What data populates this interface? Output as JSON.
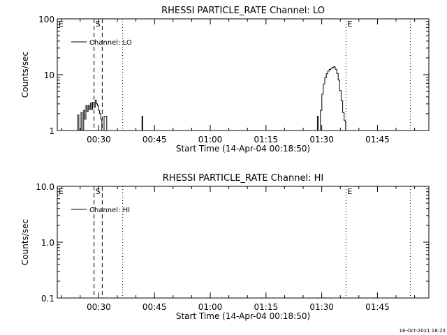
{
  "stamp": "16-Oct-2021 18:25",
  "chart_data": [
    {
      "type": "line",
      "title": "RHESSI PARTICLE_RATE Channel: LO",
      "xlabel": "Start Time (14-Apr-04 00:18:50)",
      "ylabel": "Counts/sec",
      "x_unit": "minutes from 00:18:50",
      "xlim": [
        0,
        100
      ],
      "ylim": [
        1,
        100
      ],
      "yscale": "log",
      "xticks": [
        {
          "x": 11.17,
          "label": "00:30"
        },
        {
          "x": 26.17,
          "label": "00:45"
        },
        {
          "x": 41.17,
          "label": "01:00"
        },
        {
          "x": 56.17,
          "label": "01:15"
        },
        {
          "x": 71.17,
          "label": "01:30"
        },
        {
          "x": 86.17,
          "label": "01:45"
        }
      ],
      "yticks": [
        {
          "y": 1,
          "label": "1"
        },
        {
          "y": 10,
          "label": "10"
        },
        {
          "y": 100,
          "label": "100"
        }
      ],
      "markers": [
        {
          "x": 0,
          "style": "dotted",
          "letter": "E"
        },
        {
          "x": 9.9,
          "style": "dashed",
          "letter": "S"
        },
        {
          "x": 12.1,
          "style": "dashed",
          "letter": ""
        },
        {
          "x": 17.6,
          "style": "dotted",
          "letter": ""
        },
        {
          "x": 77.7,
          "style": "dotted",
          "letter": "E"
        },
        {
          "x": 95.0,
          "style": "dotted",
          "letter": ""
        }
      ],
      "legend": {
        "label": "Channel: LO",
        "position": "top-left"
      },
      "series": [
        {
          "name": "Channel: LO",
          "segments": [
            [
              [
                5.3,
                1
              ],
              [
                5.5,
                1.9
              ],
              [
                5.8,
                1
              ],
              [
                6.2,
                1
              ],
              [
                6.4,
                2.1
              ],
              [
                6.7,
                1
              ],
              [
                6.9,
                1
              ],
              [
                7.1,
                2.3
              ],
              [
                7.4,
                1.6
              ],
              [
                7.7,
                2.8
              ],
              [
                8.0,
                2.2
              ],
              [
                8.3,
                2.8
              ],
              [
                8.6,
                2.4
              ],
              [
                8.9,
                3.1
              ],
              [
                9.2,
                2.4
              ],
              [
                9.5,
                3.2
              ],
              [
                9.9,
                2.6
              ],
              [
                10.2,
                3.5
              ],
              [
                10.5,
                3.0
              ],
              [
                10.8,
                2.8
              ],
              [
                11.1,
                2.3
              ],
              [
                11.4,
                2.0
              ],
              [
                11.7,
                1.6
              ],
              [
                12.0,
                1
              ]
            ],
            [
              [
                12.3,
                1
              ],
              [
                12.6,
                1.8
              ],
              [
                13.0,
                1.8
              ],
              [
                13.3,
                1
              ]
            ],
            [
              [
                22.6,
                1
              ],
              [
                22.8,
                1.8
              ],
              [
                23.0,
                1
              ]
            ],
            [
              [
                69.8,
                1
              ],
              [
                70.0,
                1.8
              ],
              [
                70.2,
                1
              ]
            ],
            [
              [
                70.5,
                1
              ],
              [
                70.8,
                2.3
              ],
              [
                71.2,
                4.5
              ],
              [
                71.6,
                6.8
              ],
              [
                72.0,
                8.8
              ],
              [
                72.4,
                10.4
              ],
              [
                72.8,
                11.6
              ],
              [
                73.2,
                12.4
              ],
              [
                73.6,
                13.0
              ],
              [
                74.0,
                13.4
              ],
              [
                74.4,
                13.8
              ],
              [
                74.8,
                12.5
              ],
              [
                75.2,
                10.5
              ],
              [
                75.6,
                8.0
              ],
              [
                76.0,
                5.2
              ],
              [
                76.4,
                3.4
              ],
              [
                76.8,
                2.1
              ],
              [
                77.2,
                1.5
              ],
              [
                77.6,
                1
              ]
            ]
          ]
        }
      ]
    },
    {
      "type": "line",
      "title": "RHESSI PARTICLE_RATE Channel: HI",
      "xlabel": "Start Time (14-Apr-04 00:18:50)",
      "ylabel": "Counts/sec",
      "x_unit": "minutes from 00:18:50",
      "xlim": [
        0,
        100
      ],
      "ylim": [
        0.1,
        10
      ],
      "yscale": "log",
      "xticks": [
        {
          "x": 11.17,
          "label": "00:30"
        },
        {
          "x": 26.17,
          "label": "00:45"
        },
        {
          "x": 41.17,
          "label": "01:00"
        },
        {
          "x": 56.17,
          "label": "01:15"
        },
        {
          "x": 71.17,
          "label": "01:30"
        },
        {
          "x": 86.17,
          "label": "01:45"
        }
      ],
      "yticks": [
        {
          "y": 0.1,
          "label": "0.1"
        },
        {
          "y": 1,
          "label": "1.0"
        },
        {
          "y": 10,
          "label": "10.0"
        }
      ],
      "markers": [
        {
          "x": 0,
          "style": "dotted",
          "letter": "E"
        },
        {
          "x": 9.9,
          "style": "dashed",
          "letter": "S"
        },
        {
          "x": 12.1,
          "style": "dashed",
          "letter": ""
        },
        {
          "x": 17.6,
          "style": "dotted",
          "letter": ""
        },
        {
          "x": 77.7,
          "style": "dotted",
          "letter": "E"
        },
        {
          "x": 95.0,
          "style": "dotted",
          "letter": ""
        }
      ],
      "legend": {
        "label": "Channel: HI",
        "position": "top-left"
      },
      "series": [
        {
          "name": "Channel: HI",
          "segments": []
        }
      ]
    }
  ]
}
